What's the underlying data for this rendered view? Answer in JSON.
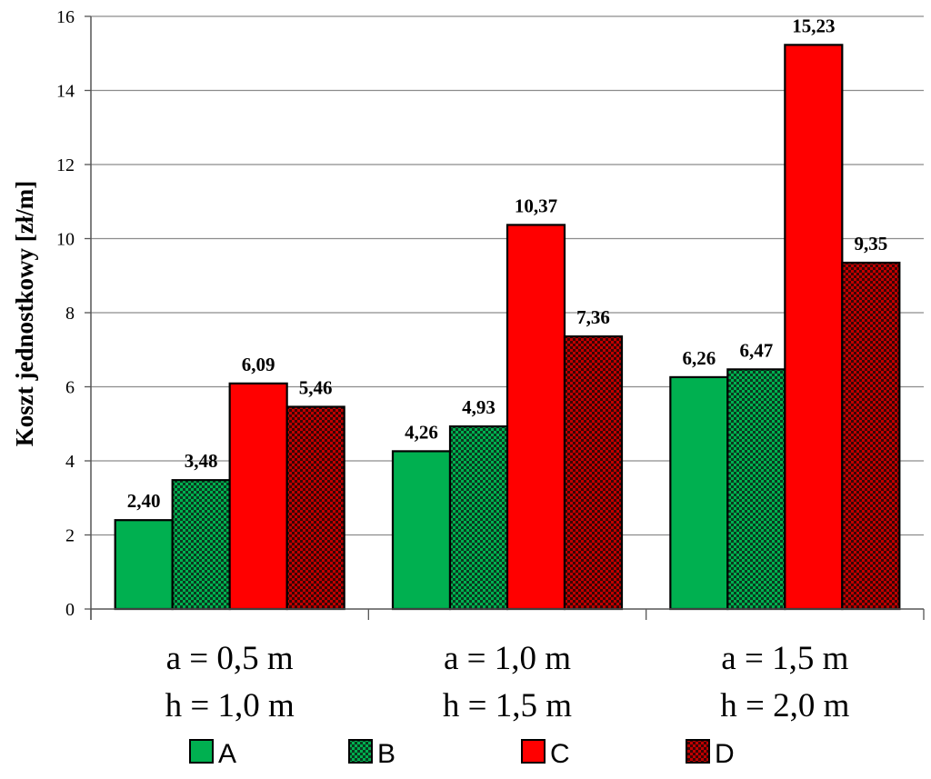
{
  "chart_data": {
    "type": "bar",
    "ylabel": "Koszt jednostkowy  [zł/m]",
    "ylim": [
      0,
      16
    ],
    "yticks": [
      "0",
      "2",
      "4",
      "6",
      "8",
      "10",
      "12",
      "14",
      "16"
    ],
    "grid": true,
    "legend_position": "bottom",
    "categories": [
      [
        "a = 0,5 m",
        "h = 1,0 m"
      ],
      [
        "a = 1,0 m",
        "h = 1,5 m"
      ],
      [
        "a = 1,5 m",
        "h = 2,0 m"
      ]
    ],
    "series": [
      {
        "name": "A",
        "values": [
          2.4,
          4.26,
          6.26
        ],
        "labels": [
          "2,40",
          "4,26",
          "6,26"
        ],
        "color": "#00b050",
        "pattern": "solid"
      },
      {
        "name": "B",
        "values": [
          3.48,
          4.93,
          6.47
        ],
        "labels": [
          "3,48",
          "4,93",
          "6,47"
        ],
        "color": "#00b050",
        "pattern": "checker"
      },
      {
        "name": "C",
        "values": [
          6.09,
          10.37,
          15.23
        ],
        "labels": [
          "6,09",
          "10,37",
          "15,23"
        ],
        "color": "#ff0000",
        "pattern": "solid"
      },
      {
        "name": "D",
        "values": [
          5.46,
          7.36,
          9.35
        ],
        "labels": [
          "5,46",
          "7,36",
          "9,35"
        ],
        "color": "#c00000",
        "pattern": "checker"
      }
    ]
  }
}
